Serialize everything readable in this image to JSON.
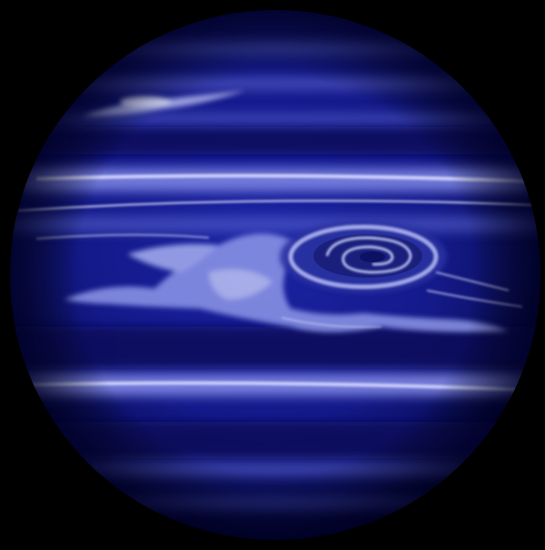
{
  "scene": {
    "subject": "planet",
    "colors": {
      "background": "#000000",
      "planet_core": "#141a8a",
      "planet_edge": "#06073a",
      "band_dark": "#0b0d5e",
      "band_light": "#7d86e6",
      "band_highlight": "#c9cdfb",
      "cloud": "#aab3f2",
      "vortex_core": "#1a1f7c",
      "vortex_ring": "#b8bdf5"
    }
  }
}
